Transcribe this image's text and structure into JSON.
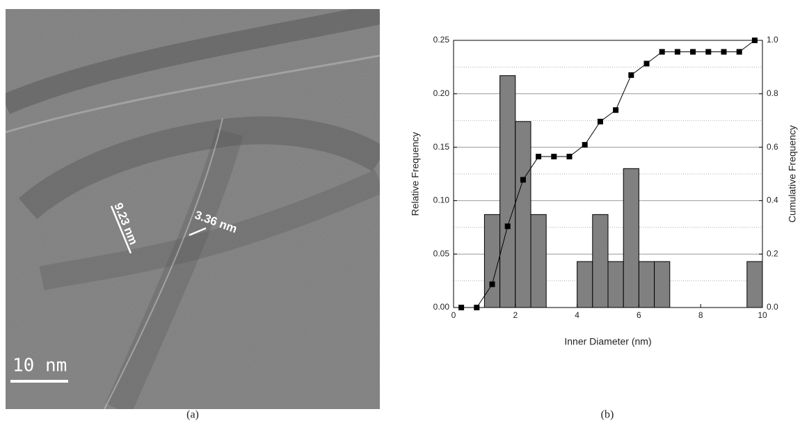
{
  "panels": {
    "a": {
      "label": "(a)",
      "annotations": [
        "9.23 nm",
        "3.36 nm"
      ],
      "scale_bar": "10 nm"
    },
    "b": {
      "label": "(b)"
    }
  },
  "chart_data": {
    "type": "histogram",
    "x_label": "Inner Diameter (nm)",
    "y_label": "Relative Frequency",
    "y2_label": "Cumulative Frequency",
    "bins": [
      0,
      0.5,
      1,
      1.5,
      2,
      2.5,
      3,
      3.5,
      4,
      4.5,
      5,
      5.5,
      6,
      6.5,
      7,
      7.5,
      8,
      8.5,
      9,
      9.5,
      10
    ],
    "counts": [
      0,
      0,
      0.087,
      0.217,
      0.174,
      0.087,
      0,
      0,
      0.043,
      0.087,
      0.043,
      0.13,
      0.043,
      0.043,
      0,
      0,
      0,
      0,
      0,
      0.043
    ],
    "color": "#808080",
    "series": [
      {
        "axis": "y2",
        "color": "#000000",
        "x": [
          0.25,
          0.75,
          1.25,
          1.75,
          2.25,
          2.75,
          3.25,
          3.75,
          4.25,
          4.75,
          5.25,
          5.75,
          6.25,
          6.75,
          7.25,
          7.75,
          8.25,
          8.75,
          9.25,
          9.75
        ],
        "values": [
          0,
          0,
          0.087,
          0.304,
          0.478,
          0.565,
          0.565,
          0.565,
          0.609,
          0.696,
          0.739,
          0.87,
          0.913,
          0.957,
          0.957,
          0.957,
          0.957,
          0.957,
          0.957,
          1.0
        ]
      }
    ],
    "xlim": [
      0,
      10
    ],
    "xticks": [
      0,
      2,
      4,
      6,
      8,
      10
    ],
    "ylim": [
      0,
      0.25
    ],
    "yticks": [
      {
        "value": 0,
        "label": "0.00"
      },
      {
        "value": 0.05,
        "label": "0.05"
      },
      {
        "value": 0.1,
        "label": "0.10"
      },
      {
        "value": 0.15,
        "label": "0.15"
      },
      {
        "value": 0.2,
        "label": "0.20"
      },
      {
        "value": 0.25,
        "label": "0.25"
      }
    ],
    "y_minor_ticks": [
      0.025,
      0.075,
      0.125,
      0.175,
      0.225
    ],
    "y2lim": [
      0,
      1
    ],
    "y2ticks": [
      {
        "value": 0,
        "label": "0.0"
      },
      {
        "value": 0.2,
        "label": "0.2"
      },
      {
        "value": 0.4,
        "label": "0.4"
      },
      {
        "value": 0.6,
        "label": "0.6"
      },
      {
        "value": 0.8,
        "label": "0.8"
      },
      {
        "value": 1,
        "label": "1.0"
      }
    ],
    "grid": true
  }
}
